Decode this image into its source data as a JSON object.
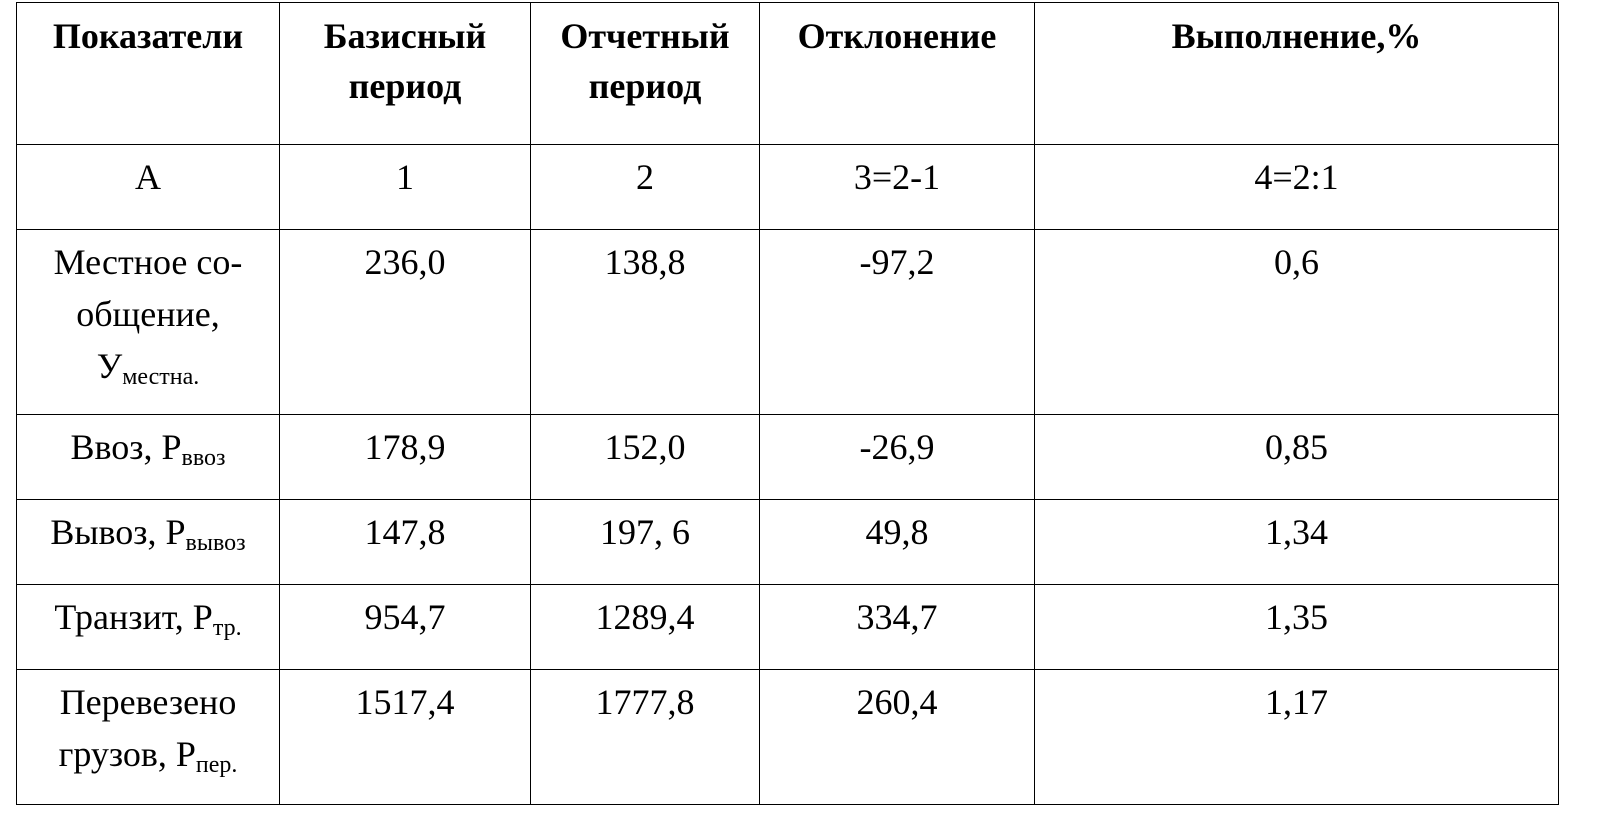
{
  "table": {
    "header": [
      "Показатели",
      "Базисный период",
      "Отчетный период",
      "Отклонение",
      "Выполнение,%"
    ],
    "index_row": [
      "А",
      "1",
      "2",
      "3=2-1",
      "4=2:1"
    ],
    "rows": [
      {
        "label": "Местное со-общение,",
        "symbol": "У",
        "subscript": "местна.",
        "values": [
          "236,0",
          "138,8",
          "-97,2",
          "0,6"
        ]
      },
      {
        "label": "Ввоз,",
        "symbol": "Р",
        "subscript": "ввоз",
        "values": [
          "178,9",
          "152,0",
          "-26,9",
          "0,85"
        ]
      },
      {
        "label": "Вывоз,",
        "symbol": "Р",
        "subscript": "вывоз",
        "values": [
          "147,8",
          "197, 6",
          "49,8",
          "1,34"
        ]
      },
      {
        "label": "Транзит,",
        "symbol": "Р",
        "subscript": "тр.",
        "values": [
          "954,7",
          "1289,4",
          "334,7",
          "1,35"
        ]
      },
      {
        "label": "Перевезено грузов,",
        "symbol": "Р",
        "subscript": "пер.",
        "values": [
          "1517,4",
          "1777,8",
          "260,4",
          "1,17"
        ]
      }
    ]
  }
}
